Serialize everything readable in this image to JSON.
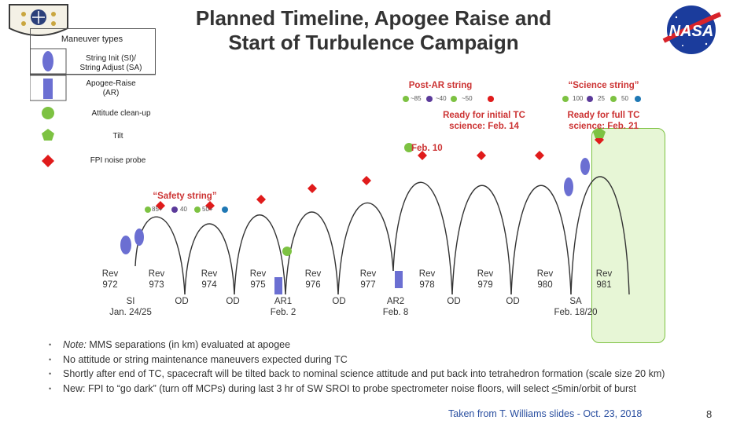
{
  "title": {
    "line1": "Planned Timeline, Apogee Raise and",
    "line2": "Start of Turbulence Campaign"
  },
  "logos": {
    "mission": "mission-patch-logo",
    "nasa": "NASA"
  },
  "legend": {
    "heading": "Maneuver types",
    "items": [
      {
        "label1": "String Init (SI)/",
        "label2": "String Adjust (SA)",
        "shape": "ellipse",
        "color": "#6b6fd2"
      },
      {
        "label1": "Apogee-Raise",
        "label2": "(AR)",
        "shape": "rect",
        "color": "#6b6fd2"
      },
      {
        "label1": "Attitude clean-up",
        "label2": "",
        "shape": "circle",
        "color": "#7dc242"
      },
      {
        "label1": "Tilt",
        "label2": "",
        "shape": "pentagon",
        "color": "#7dc242"
      },
      {
        "label1": "FPI noise probe",
        "label2": "",
        "shape": "diamond",
        "color": "#e01b1b"
      }
    ]
  },
  "strings": {
    "safety": {
      "title": "“Safety string”",
      "sep1": "85+",
      "sep2": "40",
      "sep3": "50+"
    },
    "post_ar": {
      "title": "Post-AR string",
      "sep1": "~85",
      "sep2": "~40",
      "sep3": "~50"
    },
    "science": {
      "title": "“Science string”",
      "sep1": "100",
      "sep2": "25",
      "sep3": "50"
    }
  },
  "milestones": {
    "initial": {
      "line1": "Ready for initial TC",
      "line2": "science: Feb. 14"
    },
    "feb10": "Feb. 10",
    "full": {
      "line1": "Ready for full TC",
      "line2": "science: Feb. 21"
    }
  },
  "revs": [
    {
      "rev": "Rev",
      "num": "972"
    },
    {
      "rev": "Rev",
      "num": "973"
    },
    {
      "rev": "Rev",
      "num": "974"
    },
    {
      "rev": "Rev",
      "num": "975"
    },
    {
      "rev": "Rev",
      "num": "976"
    },
    {
      "rev": "Rev",
      "num": "977"
    },
    {
      "rev": "Rev",
      "num": "978"
    },
    {
      "rev": "Rev",
      "num": "979"
    },
    {
      "rev": "Rev",
      "num": "980"
    },
    {
      "rev": "Rev",
      "num": "981"
    }
  ],
  "events": {
    "si": {
      "code": "SI",
      "date": "Jan. 24/25"
    },
    "od": "OD",
    "ar1": {
      "code": "AR1",
      "date": "Feb. 2"
    },
    "ar2": {
      "code": "AR2",
      "date": "Feb. 8"
    },
    "sa": {
      "code": "SA",
      "date": "Feb. 18/20"
    }
  },
  "notes": [
    {
      "lead": "Note:",
      "text": " MMS separations (in km) evaluated at apogee"
    },
    {
      "lead": "",
      "text": "No attitude or string maintenance maneuvers expected during TC"
    },
    {
      "lead": "",
      "text": "Shortly after end of TC, spacecraft will be tilted back to nominal science attitude and put back into tetrahedron formation (scale size 20 km)"
    },
    {
      "lead": "",
      "text": "New: FPI to “go dark” (turn off MCPs) during last 3 hr of SW SROI to probe spectrometer noise floors, will select ",
      "mark": "<",
      "tail": "5min/orbit of burst"
    }
  ],
  "credit": "Taken from T. Williams slides - Oct. 23, 2018",
  "page": "8",
  "colors": {
    "blue": "#6b6fd2",
    "green": "#7dc242",
    "red": "#e01b1b",
    "navy": "#1f3a8a",
    "highlight": "#e7f6d6"
  }
}
